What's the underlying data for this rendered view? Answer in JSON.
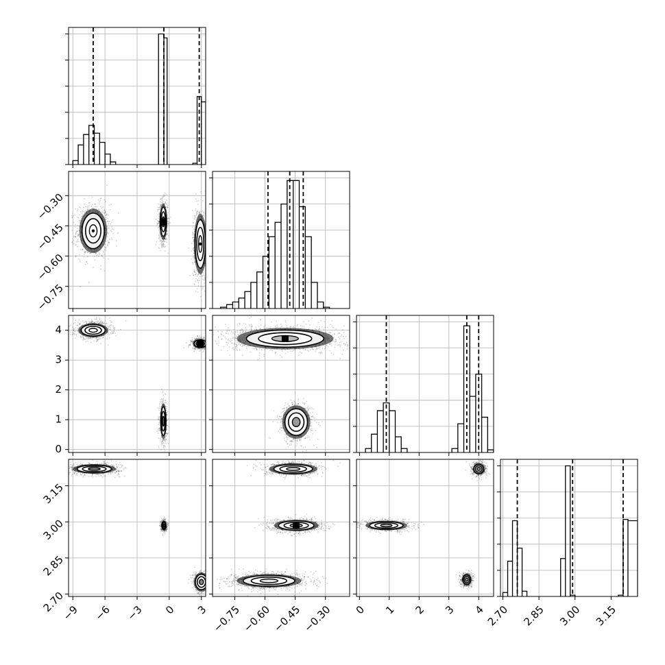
{
  "chart_data": {
    "type": "corner",
    "grid": true,
    "variables": [
      {
        "range": [
          -9.4,
          3.4
        ],
        "ticks": [
          -9,
          -6,
          -3,
          0,
          3
        ],
        "tick_labels": [
          "−9",
          "−6",
          "−3",
          "0",
          "3"
        ],
        "quantiles": [
          -7.1,
          -0.5,
          2.8
        ]
      },
      {
        "range": [
          -0.86,
          -0.18
        ],
        "ticks": [
          -0.75,
          -0.6,
          -0.45,
          -0.3
        ],
        "tick_labels": [
          "−0.75",
          "−0.60",
          "−0.45",
          "−0.30"
        ],
        "quantiles": [
          -0.585,
          -0.477,
          -0.41
        ]
      },
      {
        "range": [
          -0.1,
          4.5
        ],
        "ticks": [
          0,
          1,
          2,
          3,
          4
        ],
        "tick_labels": [
          "0",
          "1",
          "2",
          "3",
          "4"
        ],
        "quantiles": [
          0.9,
          3.6,
          4.0
        ]
      },
      {
        "range": [
          2.69,
          3.26
        ],
        "ticks": [
          2.7,
          2.85,
          3.0,
          3.15
        ],
        "tick_labels": [
          "2.70",
          "2.85",
          "3.00",
          "3.15"
        ],
        "quantiles": [
          2.76,
          2.99,
          3.2
        ]
      }
    ],
    "histograms": [
      {
        "variable": 0,
        "ymax": 1.05,
        "bins": [
          [
            -9.0,
            -8.5,
            0.03
          ],
          [
            -8.5,
            -8.0,
            0.15
          ],
          [
            -8.0,
            -7.5,
            0.23
          ],
          [
            -7.5,
            -7.0,
            0.3
          ],
          [
            -7.0,
            -6.5,
            0.24
          ],
          [
            -6.5,
            -6.0,
            0.17
          ],
          [
            -6.0,
            -5.5,
            0.08
          ],
          [
            -5.5,
            -5.0,
            0.02
          ],
          [
            -1.0,
            -0.5,
            1.0
          ],
          [
            -0.5,
            -0.2,
            0.97
          ],
          [
            2.2,
            2.6,
            0.01
          ],
          [
            2.6,
            3.0,
            0.52
          ],
          [
            3.0,
            3.4,
            0.48
          ]
        ]
      },
      {
        "variable": 1,
        "ymax": 1.05,
        "bins": [
          [
            -0.82,
            -0.79,
            0.01
          ],
          [
            -0.79,
            -0.76,
            0.03
          ],
          [
            -0.76,
            -0.73,
            0.05
          ],
          [
            -0.73,
            -0.7,
            0.08
          ],
          [
            -0.7,
            -0.67,
            0.13
          ],
          [
            -0.67,
            -0.64,
            0.2
          ],
          [
            -0.64,
            -0.61,
            0.28
          ],
          [
            -0.61,
            -0.58,
            0.4
          ],
          [
            -0.58,
            -0.55,
            0.55
          ],
          [
            -0.55,
            -0.52,
            0.66
          ],
          [
            -0.52,
            -0.49,
            0.8
          ],
          [
            -0.49,
            -0.46,
            0.98
          ],
          [
            -0.46,
            -0.43,
            0.98
          ],
          [
            -0.43,
            -0.4,
            0.78
          ],
          [
            -0.4,
            -0.37,
            0.55
          ],
          [
            -0.37,
            -0.34,
            0.2
          ],
          [
            -0.34,
            -0.31,
            0.05
          ],
          [
            -0.31,
            -0.28,
            0.01
          ]
        ]
      },
      {
        "variable": 2,
        "ymax": 1.05,
        "bins": [
          [
            0.2,
            0.4,
            0.03
          ],
          [
            0.4,
            0.6,
            0.14
          ],
          [
            0.6,
            0.8,
            0.32
          ],
          [
            0.8,
            1.0,
            0.38
          ],
          [
            1.0,
            1.2,
            0.32
          ],
          [
            1.2,
            1.4,
            0.12
          ],
          [
            1.4,
            1.6,
            0.03
          ],
          [
            3.1,
            3.3,
            0.03
          ],
          [
            3.3,
            3.5,
            0.22
          ],
          [
            3.5,
            3.7,
            0.97
          ],
          [
            3.7,
            3.9,
            0.43
          ],
          [
            3.9,
            4.1,
            0.6
          ],
          [
            4.1,
            4.3,
            0.27
          ],
          [
            4.3,
            4.5,
            0.02
          ]
        ]
      },
      {
        "variable": 3,
        "ymax": 1.05,
        "bins": [
          [
            2.7,
            2.72,
            0.03
          ],
          [
            2.72,
            2.74,
            0.27
          ],
          [
            2.74,
            2.76,
            0.58
          ],
          [
            2.76,
            2.78,
            0.37
          ],
          [
            2.78,
            2.8,
            0.04
          ],
          [
            2.94,
            2.96,
            0.29
          ],
          [
            2.96,
            2.98,
            1.0
          ],
          [
            2.98,
            3.0,
            0.01
          ],
          [
            3.18,
            3.2,
            0.01
          ],
          [
            3.2,
            3.22,
            0.59
          ],
          [
            3.22,
            3.26,
            0.58
          ]
        ]
      }
    ],
    "scatter_panels": [
      {
        "x": 0,
        "y": 1,
        "clusters": [
          {
            "cx": -7.1,
            "cy": -0.475,
            "sx": 0.65,
            "sy": 0.055,
            "n": 900,
            "contour_fill": "#ffffff",
            "core": "dot"
          },
          {
            "cx": -0.55,
            "cy": -0.43,
            "sx": 0.18,
            "sy": 0.045,
            "n": 700,
            "contour_fill": "#888888",
            "core": "square"
          },
          {
            "cx": 2.9,
            "cy": -0.54,
            "sx": 0.3,
            "sy": 0.075,
            "n": 700,
            "contour_fill": "#f2f2f2",
            "core": "dot"
          }
        ]
      },
      {
        "x": 0,
        "y": 2,
        "clusters": [
          {
            "cx": -7.1,
            "cy": 4.0,
            "sx": 0.7,
            "sy": 0.12,
            "n": 800,
            "contour_fill": "#ffffff",
            "core": "none"
          },
          {
            "cx": -0.55,
            "cy": 0.95,
            "sx": 0.15,
            "sy": 0.3,
            "n": 500,
            "contour_fill": "#888888",
            "core": "none"
          },
          {
            "cx": 2.9,
            "cy": 3.55,
            "sx": 0.35,
            "sy": 0.08,
            "n": 500,
            "contour_fill": "#666666",
            "core": "square"
          }
        ]
      },
      {
        "x": 0,
        "y": 3,
        "clusters": [
          {
            "cx": -7.0,
            "cy": 3.22,
            "sx": 1.0,
            "sy": 0.01,
            "n": 900,
            "contour_fill": "#888888",
            "core": "none"
          },
          {
            "cx": -0.5,
            "cy": 2.985,
            "sx": 0.12,
            "sy": 0.01,
            "n": 400,
            "contour_fill": "#888888",
            "core": "none"
          },
          {
            "cx": 3.0,
            "cy": 2.75,
            "sx": 0.35,
            "sy": 0.02,
            "n": 500,
            "contour_fill": "#888888",
            "core": "none"
          }
        ]
      },
      {
        "x": 1,
        "y": 2,
        "clusters": [
          {
            "cx": -0.5,
            "cy": 3.72,
            "sx": 0.12,
            "sy": 0.18,
            "n": 1400,
            "contour_fill": "#bbbbbb",
            "core": "square"
          },
          {
            "cx": -0.445,
            "cy": 0.92,
            "sx": 0.035,
            "sy": 0.28,
            "n": 700,
            "contour_fill": "#999999",
            "core": "none"
          }
        ]
      },
      {
        "x": 1,
        "y": 3,
        "clusters": [
          {
            "cx": -0.46,
            "cy": 3.22,
            "sx": 0.06,
            "sy": 0.012,
            "n": 600,
            "contour_fill": "#cccccc",
            "core": "none"
          },
          {
            "cx": -0.445,
            "cy": 2.985,
            "sx": 0.055,
            "sy": 0.012,
            "n": 800,
            "contour_fill": "#bbbbbb",
            "core": "square"
          },
          {
            "cx": -0.58,
            "cy": 2.755,
            "sx": 0.08,
            "sy": 0.014,
            "n": 1100,
            "contour_fill": "#e6e6e6",
            "core": "none"
          }
        ]
      },
      {
        "x": 2,
        "y": 3,
        "clusters": [
          {
            "cx": 0.9,
            "cy": 2.985,
            "sx": 0.35,
            "sy": 0.01,
            "n": 700,
            "contour_fill": "#bbbbbb",
            "core": "none"
          },
          {
            "cx": 3.6,
            "cy": 2.76,
            "sx": 0.08,
            "sy": 0.012,
            "n": 600,
            "contour_fill": "#999999",
            "core": "none"
          },
          {
            "cx": 4.0,
            "cy": 3.22,
            "sx": 0.1,
            "sy": 0.012,
            "n": 600,
            "contour_fill": "#999999",
            "core": "none"
          }
        ]
      }
    ]
  }
}
